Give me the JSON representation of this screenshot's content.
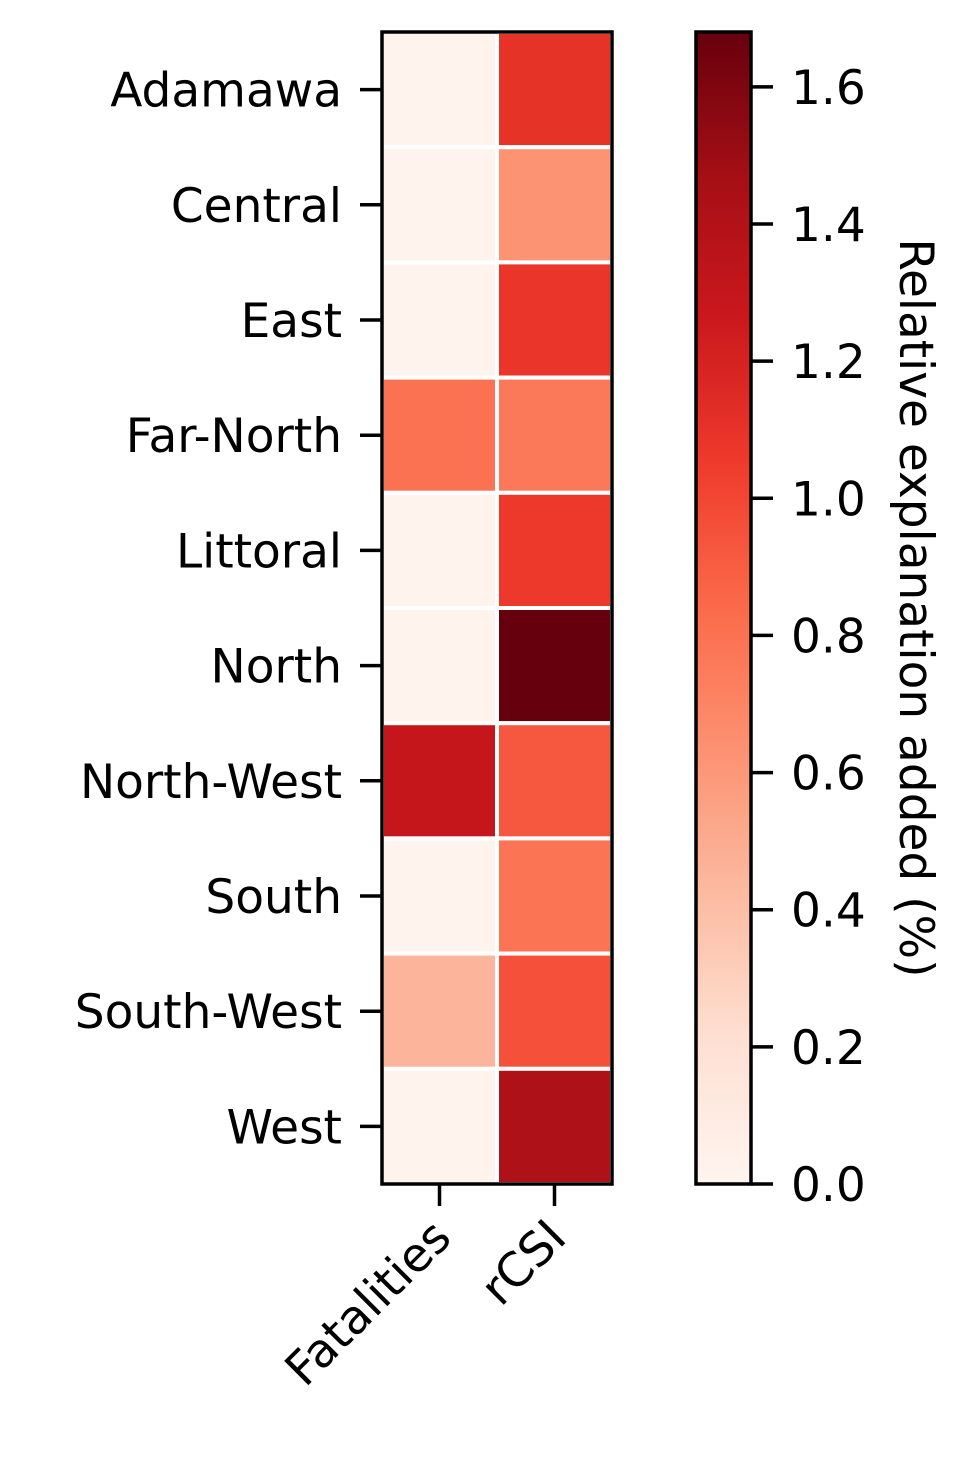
{
  "chart_data": {
    "type": "heatmap",
    "title": "",
    "xlabel": "",
    "ylabel": "",
    "columns": [
      "Fatalities",
      "rCSI"
    ],
    "rows": [
      "Adamawa",
      "Central",
      "East",
      "Far-North",
      "Littoral",
      "North",
      "North-West",
      "South",
      "South-West",
      "West"
    ],
    "values": [
      [
        0.02,
        1.1
      ],
      [
        0.02,
        0.62
      ],
      [
        0.02,
        1.08
      ],
      [
        0.8,
        0.76
      ],
      [
        0.02,
        1.06
      ],
      [
        0.02,
        1.68
      ],
      [
        1.3,
        0.92
      ],
      [
        0.02,
        0.78
      ],
      [
        0.45,
        0.95
      ],
      [
        0.02,
        1.42
      ]
    ],
    "colorscale": "Reds",
    "colorbar": {
      "label": "Relative explanation added (%)",
      "min": 0.0,
      "max": 1.68,
      "ticks": [
        "0.0",
        "0.2",
        "0.4",
        "0.6",
        "0.8",
        "1.0",
        "1.2",
        "1.4",
        "1.6"
      ]
    }
  }
}
